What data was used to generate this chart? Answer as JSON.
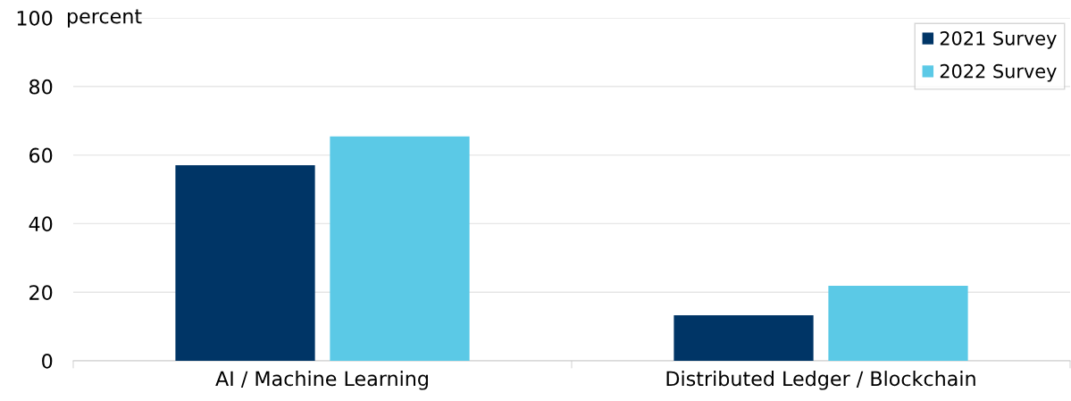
{
  "chart_data": {
    "type": "bar",
    "ylabel": "percent",
    "categories": [
      "AI / Machine Learning",
      "Distributed Ledger / Blockchain"
    ],
    "series": [
      {
        "name": "2021 Survey",
        "color": "#003566",
        "values": [
          57,
          13.3
        ]
      },
      {
        "name": "2022 Survey",
        "color": "#5bc9e6",
        "values": [
          65.4,
          21.9
        ]
      }
    ],
    "ylim": [
      0,
      100
    ],
    "yticks": [
      0,
      20,
      40,
      60,
      80,
      100
    ],
    "grid": "y",
    "legend": "top right"
  }
}
